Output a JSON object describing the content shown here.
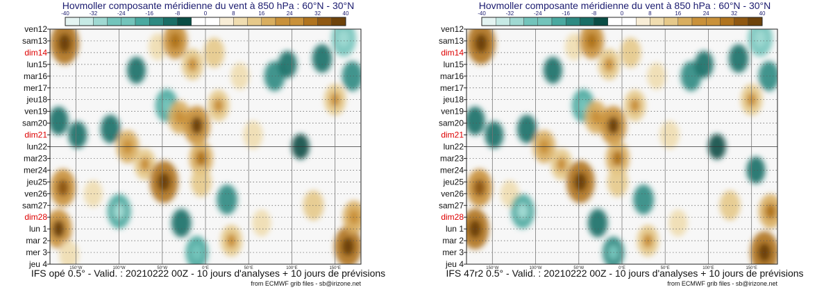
{
  "colors": {
    "negative": [
      "#0a4d45",
      "#1a6e66",
      "#2e8a82",
      "#4aa9a0",
      "#73c4bb",
      "#9fd9d2",
      "#c6eae5",
      "#e4f4f2"
    ],
    "positive": [
      "#f8edd6",
      "#f0ddb0",
      "#e6c98a",
      "#d9ae5f",
      "#c9913a",
      "#b0741f",
      "#8f5812",
      "#6e430b"
    ],
    "neutral": "#f7f7f7",
    "weekend_label": "#dd0000",
    "title_color": "#1a1a6e"
  },
  "chart_data": [
    {
      "type": "heatmap",
      "title": "Hovmoller composante méridienne du vent à 850 hPa : 60°N - 30°N",
      "footer": "IFS opé 0.5° - Valid. : 20210222 00Z - 10 jours d'analyses + 10 jours de prévisions",
      "credit": "from ECMWF grib files - sb@irizone.net",
      "colorbar_ticks": [
        "-40",
        "-32",
        "-24",
        "-16",
        "-8",
        "0",
        "8",
        "16",
        "24",
        "32",
        "40"
      ],
      "colorbar_range": [
        -40,
        40
      ],
      "x_axis": {
        "range": [
          -180,
          180
        ],
        "ticks": [
          -150,
          -100,
          -50,
          0,
          50,
          100,
          150
        ],
        "tick_labels": [
          "150°W",
          "100°W",
          "50°W",
          "0°E",
          "50°E",
          "100°E",
          "150°E"
        ]
      },
      "y_labels": [
        "ven12",
        "sam13",
        "dim14",
        "lun15",
        "mar16",
        "mer17",
        "jeu18",
        "ven19",
        "sam20",
        "dim21",
        "lun22",
        "mar23",
        "mer24",
        "jeu25",
        "ven26",
        "sam27",
        "dim28",
        "lun 1",
        "mar 2",
        "mer 3",
        "jeu 4"
      ],
      "weekend": [
        "dim14",
        "dim21",
        "dim28"
      ],
      "reference_line": "lun22",
      "blobs": [
        {
          "lon": -163,
          "day": 1.2,
          "v": 30
        },
        {
          "lon": -170,
          "day": 7.8,
          "v": -12
        },
        {
          "lon": -165,
          "day": 13.5,
          "v": 24
        },
        {
          "lon": -170,
          "day": 17,
          "v": 26
        },
        {
          "lon": -158,
          "day": 19.2,
          "v": 12
        },
        {
          "lon": -148,
          "day": 9,
          "v": -10
        },
        {
          "lon": -130,
          "day": 14,
          "v": 10
        },
        {
          "lon": -110,
          "day": 8.5,
          "v": -12
        },
        {
          "lon": -100,
          "day": 15.5,
          "v": -20
        },
        {
          "lon": -90,
          "day": 10,
          "v": 18
        },
        {
          "lon": -80,
          "day": 3.5,
          "v": -10
        },
        {
          "lon": -70,
          "day": 11.5,
          "v": 16
        },
        {
          "lon": -55,
          "day": 1.5,
          "v": 10
        },
        {
          "lon": -48,
          "day": 13,
          "v": 30
        },
        {
          "lon": -45,
          "day": 6.5,
          "v": -18
        },
        {
          "lon": -35,
          "day": 1,
          "v": 22
        },
        {
          "lon": -30,
          "day": 7.5,
          "v": 18
        },
        {
          "lon": -28,
          "day": 16.5,
          "v": -12
        },
        {
          "lon": -15,
          "day": 3,
          "v": 16
        },
        {
          "lon": -10,
          "day": 8.2,
          "v": 26
        },
        {
          "lon": -5,
          "day": 11,
          "v": 20
        },
        {
          "lon": -10,
          "day": 19,
          "v": -18
        },
        {
          "lon": -5,
          "day": 13,
          "v": 14
        },
        {
          "lon": 10,
          "day": 2,
          "v": 14
        },
        {
          "lon": 15,
          "day": 6.5,
          "v": 16
        },
        {
          "lon": 25,
          "day": 14.5,
          "v": -14
        },
        {
          "lon": 30,
          "day": 18,
          "v": 16
        },
        {
          "lon": 40,
          "day": 4,
          "v": 10
        },
        {
          "lon": 55,
          "day": 9,
          "v": 12
        },
        {
          "lon": 65,
          "day": 16.5,
          "v": 10
        },
        {
          "lon": 80,
          "day": 4,
          "v": -14
        },
        {
          "lon": 95,
          "day": 3,
          "v": -10
        },
        {
          "lon": 110,
          "day": 10,
          "v": -8
        },
        {
          "lon": 125,
          "day": 15,
          "v": 14
        },
        {
          "lon": 135,
          "day": 2.5,
          "v": -12
        },
        {
          "lon": 150,
          "day": 6,
          "v": 16
        },
        {
          "lon": 160,
          "day": 0.8,
          "v": -22
        },
        {
          "lon": 165,
          "day": 18.5,
          "v": 28
        },
        {
          "lon": 170,
          "day": 4,
          "v": -14
        },
        {
          "lon": 172,
          "day": 16,
          "v": 18
        }
      ]
    },
    {
      "type": "heatmap",
      "title": "Hovmoller composante méridienne du vent à 850 hPa : 60°N - 30°N",
      "footer": "IFS 47r2 0.5° - Valid. : 20210222 00Z - 10 jours d'analyses + 10 jours de prévisions",
      "credit": "from ECMWF grib files - sb@irizone.net",
      "colorbar_ticks": [
        "-40",
        "-32",
        "-24",
        "-16",
        "-8",
        "0",
        "8",
        "16",
        "24",
        "32",
        "40"
      ],
      "colorbar_range": [
        -40,
        40
      ],
      "x_axis": {
        "range": [
          -180,
          180
        ],
        "ticks": [
          -150,
          -100,
          -50,
          0,
          50,
          100,
          150
        ],
        "tick_labels": [
          "150°W",
          "100°W",
          "50°W",
          "0°E",
          "50°E",
          "100°E",
          "150°E"
        ]
      },
      "y_labels": [
        "ven12",
        "sam13",
        "dim14",
        "lun15",
        "mar16",
        "mer17",
        "jeu18",
        "ven19",
        "sam20",
        "dim21",
        "lun22",
        "mar23",
        "mer24",
        "jeu25",
        "ven26",
        "sam27",
        "dim28",
        "lun 1",
        "mar 2",
        "mer 3",
        "jeu 4"
      ],
      "weekend": [
        "dim14",
        "dim21",
        "dim28"
      ],
      "reference_line": "lun22",
      "blobs": [
        {
          "lon": -163,
          "day": 1.2,
          "v": 30
        },
        {
          "lon": -170,
          "day": 7.8,
          "v": -12
        },
        {
          "lon": -165,
          "day": 13.5,
          "v": 24
        },
        {
          "lon": -170,
          "day": 17,
          "v": 28
        },
        {
          "lon": -148,
          "day": 9,
          "v": -10
        },
        {
          "lon": -130,
          "day": 14,
          "v": 10
        },
        {
          "lon": -115,
          "day": 15.5,
          "v": -20
        },
        {
          "lon": -110,
          "day": 8.5,
          "v": -12
        },
        {
          "lon": -90,
          "day": 10,
          "v": 18
        },
        {
          "lon": -80,
          "day": 3.5,
          "v": -10
        },
        {
          "lon": -70,
          "day": 11.5,
          "v": 16
        },
        {
          "lon": -55,
          "day": 1.5,
          "v": 10
        },
        {
          "lon": -48,
          "day": 13,
          "v": 30
        },
        {
          "lon": -45,
          "day": 6.5,
          "v": -18
        },
        {
          "lon": -35,
          "day": 1,
          "v": 22
        },
        {
          "lon": -30,
          "day": 7.5,
          "v": 18
        },
        {
          "lon": -28,
          "day": 16.5,
          "v": -12
        },
        {
          "lon": -15,
          "day": 3,
          "v": 16
        },
        {
          "lon": -10,
          "day": 8.2,
          "v": 26
        },
        {
          "lon": -5,
          "day": 11,
          "v": 20
        },
        {
          "lon": -10,
          "day": 19,
          "v": -16
        },
        {
          "lon": -5,
          "day": 13,
          "v": 14
        },
        {
          "lon": 10,
          "day": 2,
          "v": 14
        },
        {
          "lon": 15,
          "day": 6.5,
          "v": 16
        },
        {
          "lon": 25,
          "day": 14.5,
          "v": -14
        },
        {
          "lon": 30,
          "day": 18,
          "v": 16
        },
        {
          "lon": 40,
          "day": 4,
          "v": 10
        },
        {
          "lon": 55,
          "day": 9,
          "v": 12
        },
        {
          "lon": 65,
          "day": 16.5,
          "v": 10
        },
        {
          "lon": 80,
          "day": 4,
          "v": -14
        },
        {
          "lon": 95,
          "day": 3,
          "v": -10
        },
        {
          "lon": 110,
          "day": 10,
          "v": -8
        },
        {
          "lon": 125,
          "day": 15,
          "v": 14
        },
        {
          "lon": 135,
          "day": 2.5,
          "v": -12
        },
        {
          "lon": 150,
          "day": 6,
          "v": 16
        },
        {
          "lon": 160,
          "day": 0.8,
          "v": -22
        },
        {
          "lon": 165,
          "day": 19,
          "v": 30
        },
        {
          "lon": 170,
          "day": 4,
          "v": -14
        },
        {
          "lon": 172,
          "day": 15.5,
          "v": 20
        },
        {
          "lon": 155,
          "day": 12,
          "v": -10
        }
      ]
    }
  ]
}
